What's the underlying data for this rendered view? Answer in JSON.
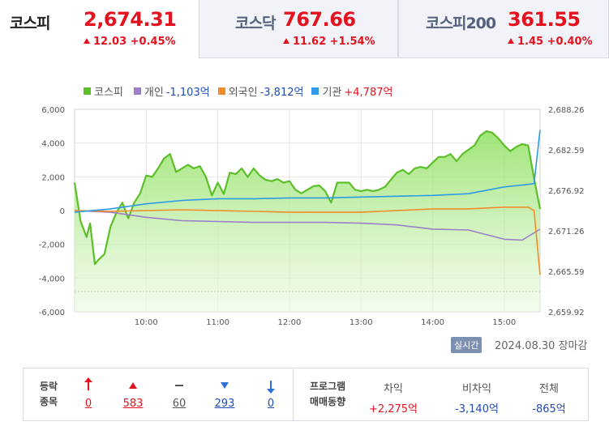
{
  "tabs": [
    {
      "name": "코스피",
      "value": "2,674.31",
      "change": "12.03 +0.45%"
    },
    {
      "name": "코스닥",
      "value": "767.66",
      "change": "11.62 +1.54%"
    },
    {
      "name": "코스피200",
      "value": "361.55",
      "change": "1.45 +0.40%"
    }
  ],
  "legend": [
    {
      "name": "코스피",
      "value": "",
      "color": "#5cbf2a"
    },
    {
      "name": "개인",
      "value": "-1,103억",
      "color": "#9b7fc9"
    },
    {
      "name": "외국인",
      "value": "-3,812억",
      "color": "#f08c2a"
    },
    {
      "name": "기관",
      "value": "+4,787억",
      "color": "#2f9ae6"
    }
  ],
  "status": {
    "realtime_label": "실시간",
    "date": "2024.08.30",
    "state": "장마감"
  },
  "market_breadth": {
    "title_line1": "등락",
    "title_line2": "종목",
    "items": [
      {
        "kind": "upper-limit",
        "count": "0",
        "color": "#e3121f"
      },
      {
        "kind": "up",
        "count": "583",
        "color": "#e3121f"
      },
      {
        "kind": "flat",
        "count": "60",
        "color": "#555555"
      },
      {
        "kind": "down",
        "count": "293",
        "color": "#1d4bb8"
      },
      {
        "kind": "lower-limit",
        "count": "0",
        "color": "#1d4bb8"
      }
    ]
  },
  "program": {
    "title_line1": "프로그램",
    "title_line2": "매매동향",
    "columns": [
      {
        "label": "차익",
        "value": "+2,275억",
        "color": "#e3121f"
      },
      {
        "label": "비차익",
        "value": "-3,140억",
        "color": "#1d4bb8"
      },
      {
        "label": "전체",
        "value": "-865억",
        "color": "#1d4bb8"
      }
    ]
  },
  "chart_data": {
    "type": "line",
    "x_ticks": [
      "10:00",
      "11:00",
      "12:00",
      "13:00",
      "14:00",
      "15:00"
    ],
    "x_start": "09:00",
    "x_end": "15:30",
    "y_left_ticks": [
      "6,000",
      "4,000",
      "2,000",
      "0",
      "-2,000",
      "-4,000",
      "-6,000"
    ],
    "y_left_range": [
      -6000,
      6000
    ],
    "y_right_ticks": [
      "2,688.26",
      "2,682.59",
      "2,676.92",
      "2,671.26",
      "2,665.59",
      "2,659.92"
    ],
    "y_right_range": [
      2659.92,
      2688.26
    ],
    "reference_line_y": -4800,
    "series": [
      {
        "name": "코스피",
        "axis": "right",
        "area": true,
        "x": [
          "09:00",
          "09:05",
          "09:10",
          "09:13",
          "09:17",
          "09:20",
          "09:25",
          "09:30",
          "09:35",
          "09:40",
          "09:45",
          "09:50",
          "09:55",
          "10:00",
          "10:05",
          "10:10",
          "10:15",
          "10:20",
          "10:25",
          "10:30",
          "10:35",
          "10:40",
          "10:45",
          "10:50",
          "10:55",
          "11:00",
          "11:05",
          "11:10",
          "11:15",
          "11:20",
          "11:25",
          "11:30",
          "11:35",
          "11:40",
          "11:45",
          "11:50",
          "11:55",
          "12:00",
          "12:05",
          "12:10",
          "12:15",
          "12:20",
          "12:25",
          "12:30",
          "12:35",
          "12:40",
          "12:45",
          "12:50",
          "12:55",
          "13:00",
          "13:05",
          "13:10",
          "13:15",
          "13:20",
          "13:25",
          "13:30",
          "13:35",
          "13:40",
          "13:45",
          "13:50",
          "13:55",
          "14:00",
          "14:05",
          "14:10",
          "14:15",
          "14:20",
          "14:25",
          "14:30",
          "14:35",
          "14:40",
          "14:45",
          "14:50",
          "14:55",
          "15:00",
          "15:05",
          "15:10",
          "15:15",
          "15:20",
          "15:25",
          "15:30"
        ],
        "values": [
          2678.0,
          2672.6,
          2670.4,
          2672.3,
          2666.6,
          2667.2,
          2668.0,
          2671.8,
          2673.8,
          2675.2,
          2673.0,
          2675.2,
          2676.5,
          2679.0,
          2678.8,
          2680.0,
          2681.4,
          2682.0,
          2679.5,
          2680.0,
          2680.5,
          2680.0,
          2680.3,
          2678.8,
          2676.2,
          2678.0,
          2676.4,
          2679.4,
          2679.2,
          2680.0,
          2678.8,
          2680.0,
          2679.0,
          2678.4,
          2678.2,
          2678.5,
          2678.0,
          2678.2,
          2677.0,
          2676.5,
          2677.0,
          2677.5,
          2677.6,
          2676.8,
          2675.2,
          2678.0,
          2678.0,
          2678.0,
          2677.0,
          2676.8,
          2677.0,
          2676.8,
          2677.0,
          2677.4,
          2678.4,
          2679.4,
          2679.8,
          2679.2,
          2680.0,
          2680.2,
          2680.0,
          2680.8,
          2681.6,
          2681.6,
          2682.0,
          2681.0,
          2682.0,
          2682.6,
          2683.2,
          2684.6,
          2685.2,
          2685.0,
          2684.2,
          2683.2,
          2682.4,
          2683.0,
          2683.4,
          2683.2,
          2678.6,
          2674.31
        ]
      },
      {
        "name": "개인",
        "axis": "left",
        "x": [
          "09:00",
          "09:30",
          "10:00",
          "10:30",
          "11:00",
          "11:30",
          "12:00",
          "12:30",
          "13:00",
          "13:30",
          "14:00",
          "14:30",
          "15:00",
          "15:15",
          "15:30"
        ],
        "values": [
          0,
          -100,
          -400,
          -600,
          -650,
          -700,
          -700,
          -700,
          -750,
          -850,
          -1100,
          -1150,
          -1700,
          -1750,
          -1103
        ]
      },
      {
        "name": "외국인",
        "axis": "left",
        "x": [
          "09:00",
          "09:30",
          "10:00",
          "10:30",
          "11:00",
          "11:30",
          "12:00",
          "12:30",
          "13:00",
          "13:30",
          "14:00",
          "14:30",
          "15:00",
          "15:20",
          "15:25",
          "15:30"
        ],
        "values": [
          0,
          -50,
          0,
          50,
          0,
          -50,
          -100,
          -100,
          -100,
          0,
          100,
          100,
          200,
          200,
          0,
          -3812
        ]
      },
      {
        "name": "기관",
        "axis": "left",
        "x": [
          "09:00",
          "09:30",
          "10:00",
          "10:30",
          "11:00",
          "11:30",
          "12:00",
          "12:30",
          "13:00",
          "13:30",
          "14:00",
          "14:30",
          "15:00",
          "15:20",
          "15:25",
          "15:30"
        ],
        "values": [
          -100,
          100,
          400,
          600,
          700,
          700,
          750,
          750,
          800,
          850,
          900,
          1000,
          1400,
          1550,
          1600,
          4787
        ]
      }
    ]
  }
}
